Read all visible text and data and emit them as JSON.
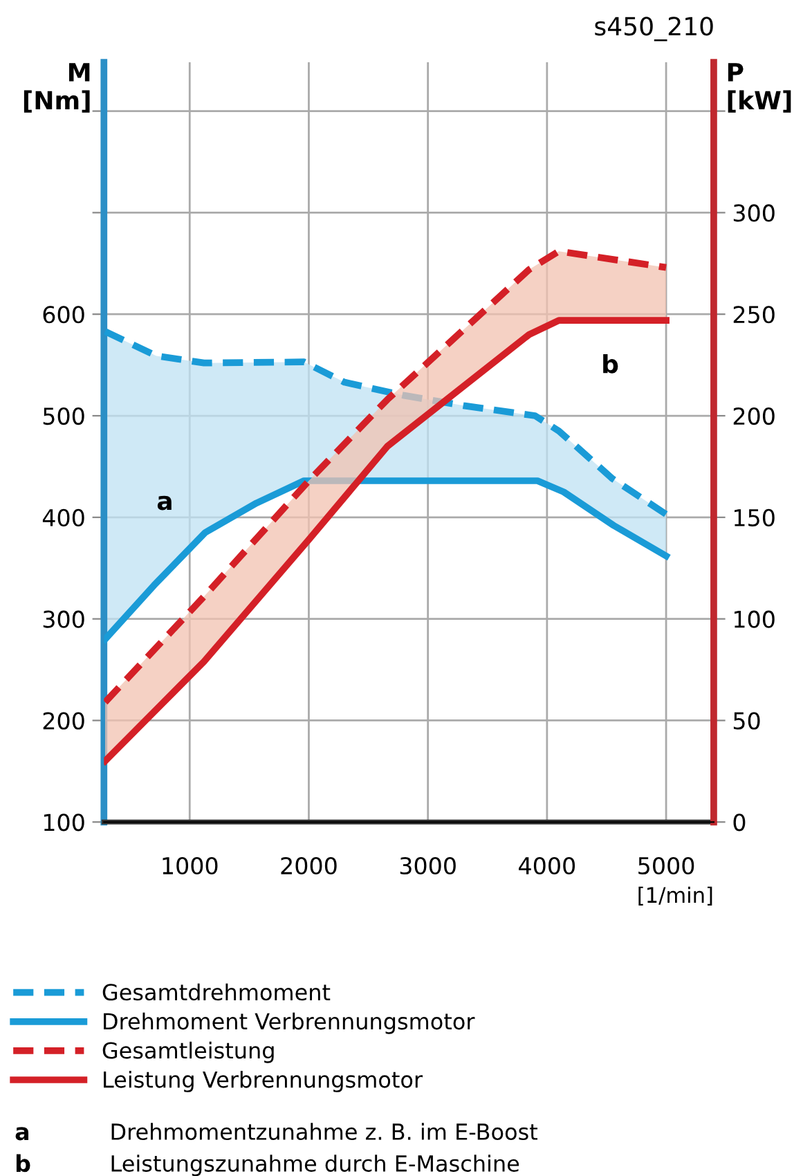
{
  "chart_data": {
    "type": "line",
    "xlabel": "[1/min]",
    "ylabel": "M\n[Nm]",
    "y2label": "P\n[kW]",
    "xlim": [
      280,
      5400
    ],
    "xticks": [
      1000,
      2000,
      3000,
      4000,
      5000
    ],
    "ylim": [
      100,
      848
    ],
    "yticks": [
      100,
      200,
      300,
      400,
      500,
      600,
      {
        "value": 700,
        "label": null
      },
      {
        "value": 800,
        "label": null
      }
    ],
    "y2lim": [
      0,
      374
    ],
    "y2ticks": [
      0,
      50,
      100,
      150,
      200,
      250,
      300,
      {
        "value": 350,
        "label": null
      }
    ],
    "grid": true,
    "legend": "bottom",
    "marker": "none",
    "series": [
      {
        "name": "Gesamtdrehmoment",
        "color": "#1a9bd7",
        "line_style": "dashed",
        "x": [
          290,
          720,
          1120,
          1960,
          2300,
          2800,
          3300,
          3900,
          4100,
          4550,
          5000
        ],
        "values": [
          583,
          559,
          552,
          553,
          533,
          520,
          510,
          500,
          485,
          438,
          403
        ]
      },
      {
        "name": "Drehmoment Verbrennungsmotor",
        "color": "#1a9bd7",
        "line_style": "solid",
        "x": [
          290,
          700,
          1130,
          1560,
          1960,
          3920,
          4140,
          4560,
          5000
        ],
        "values": [
          280,
          333,
          385,
          414,
          436,
          436,
          425,
          392,
          362
        ]
      },
      {
        "name": "Gesamtleistung",
        "color": "#d42027",
        "line_style": "dashed",
        "axis": "y2",
        "x": [
          290,
          1120,
          2000,
          2660,
          3850,
          4100,
          5000
        ],
        "values": [
          59,
          111,
          168,
          208,
          272,
          281,
          273
        ],
        "lower": [
          30,
          79,
          139,
          185,
          240,
          247,
          247
        ],
        "upper": [
          59,
          111,
          168,
          208,
          272,
          281,
          273
        ]
      },
      {
        "name": "Leistung Verbrennungsmotor",
        "color": "#d42027",
        "line_style": "solid",
        "axis": "y2",
        "x": [
          290,
          1120,
          2000,
          2660,
          3850,
          4100,
          5000
        ],
        "values": [
          30,
          79,
          139,
          185,
          240,
          247,
          247
        ]
      }
    ],
    "annotations": [
      "a",
      "b",
      "s450_210",
      "a Drehmomentzunahme z. B. im E-Boost",
      "b Leistungszunahme durch E-Maschine"
    ]
  }
}
